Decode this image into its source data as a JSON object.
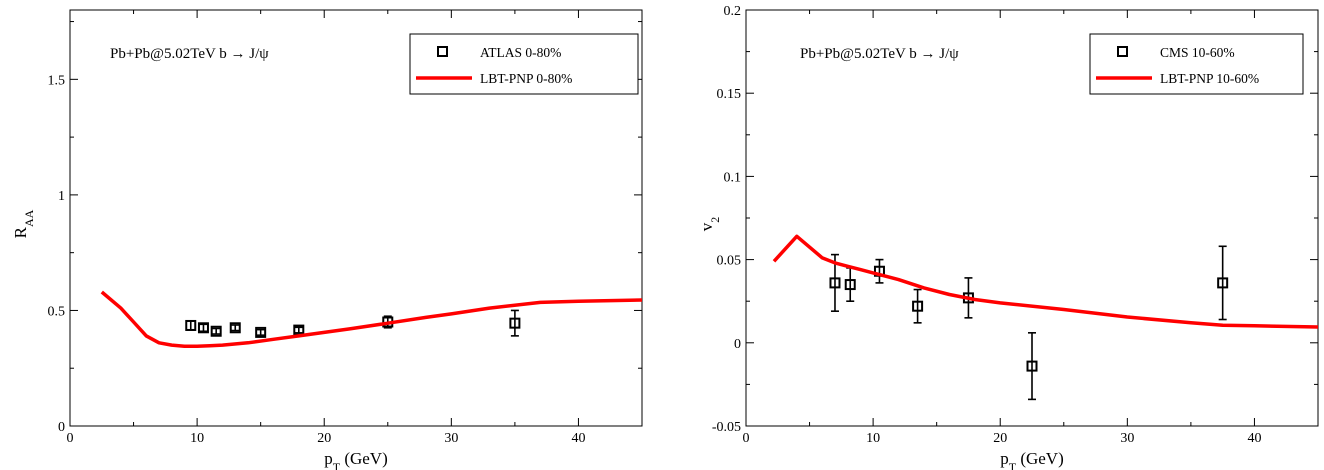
{
  "chart_data": [
    {
      "type": "scatter",
      "xlim": [
        0,
        45
      ],
      "ylim": [
        0,
        1.8
      ],
      "xticks": [
        0,
        10,
        20,
        30,
        40
      ],
      "xtick_labels": [
        "0",
        "10",
        "20",
        "30",
        "40"
      ],
      "yticks": [
        0,
        0.5,
        1,
        1.5
      ],
      "ytick_labels": [
        "0",
        "0.5",
        "1",
        "1.5"
      ],
      "xlabel": {
        "main": "p",
        "sub": "T",
        "rest": " (GeV)"
      },
      "ylabel": {
        "main": "R",
        "sub": "AA"
      },
      "annotation": "Pb+Pb@5.02TeV  b → J/ψ",
      "legend_position": "top-right",
      "legend": [
        {
          "kind": "marker",
          "label": "ATLAS  0-80%"
        },
        {
          "kind": "line",
          "label": "LBT-PNP  0-80%"
        }
      ],
      "series": [
        {
          "name": "ATLAS  0-80%",
          "kind": "points",
          "color": "#000000",
          "x": [
            9.5,
            10.5,
            11.5,
            13,
            15,
            18,
            25,
            35
          ],
          "y": [
            0.435,
            0.425,
            0.41,
            0.425,
            0.405,
            0.415,
            0.45,
            0.445
          ],
          "yerr": [
            0.02,
            0.015,
            0.012,
            0.012,
            0.012,
            0.012,
            0.025,
            0.055
          ]
        },
        {
          "name": "LBT-PNP  0-80%",
          "kind": "line",
          "color": "#ff0000",
          "x": [
            2.5,
            4,
            5,
            6,
            7,
            8,
            9,
            10,
            11,
            12,
            14,
            16,
            18,
            20,
            22,
            25,
            28,
            30,
            33,
            37,
            40,
            45
          ],
          "y": [
            0.58,
            0.51,
            0.45,
            0.39,
            0.36,
            0.35,
            0.345,
            0.345,
            0.347,
            0.35,
            0.36,
            0.375,
            0.39,
            0.405,
            0.42,
            0.445,
            0.47,
            0.485,
            0.51,
            0.535,
            0.54,
            0.545
          ]
        }
      ]
    },
    {
      "type": "scatter",
      "xlim": [
        0,
        45
      ],
      "ylim": [
        -0.05,
        0.2
      ],
      "xticks": [
        0,
        10,
        20,
        30,
        40
      ],
      "xtick_labels": [
        "0",
        "10",
        "20",
        "30",
        "40"
      ],
      "yticks": [
        -0.05,
        0,
        0.05,
        0.1,
        0.15,
        0.2
      ],
      "ytick_labels": [
        "-0.05",
        "0",
        "0.05",
        "0.1",
        "0.15",
        "0.2"
      ],
      "xlabel": {
        "main": "p",
        "sub": "T",
        "rest": " (GeV)"
      },
      "ylabel": {
        "main": "v",
        "sub": "2"
      },
      "annotation": "Pb+Pb@5.02TeV  b → J/ψ",
      "legend_position": "top-right",
      "legend": [
        {
          "kind": "marker",
          "label": "CMS  10-60%"
        },
        {
          "kind": "line",
          "label": "LBT-PNP  10-60%"
        }
      ],
      "series": [
        {
          "name": "CMS  10-60%",
          "kind": "points",
          "color": "#000000",
          "x": [
            7,
            8.2,
            10.5,
            13.5,
            17.5,
            22.5,
            37.5
          ],
          "y": [
            0.036,
            0.035,
            0.043,
            0.022,
            0.027,
            -0.014,
            0.036
          ],
          "yerr": [
            0.017,
            0.01,
            0.007,
            0.01,
            0.012,
            0.02,
            0.022
          ]
        },
        {
          "name": "LBT-PNP  10-60%",
          "kind": "line",
          "color": "#ff0000",
          "x": [
            2.2,
            4,
            6,
            7,
            8,
            9,
            10,
            12,
            14,
            16,
            18,
            20,
            25,
            30,
            35,
            37.5,
            40,
            45
          ],
          "y": [
            0.049,
            0.064,
            0.051,
            0.048,
            0.046,
            0.044,
            0.042,
            0.038,
            0.033,
            0.029,
            0.026,
            0.024,
            0.02,
            0.0155,
            0.012,
            0.0105,
            0.0102,
            0.0095
          ]
        }
      ]
    }
  ]
}
